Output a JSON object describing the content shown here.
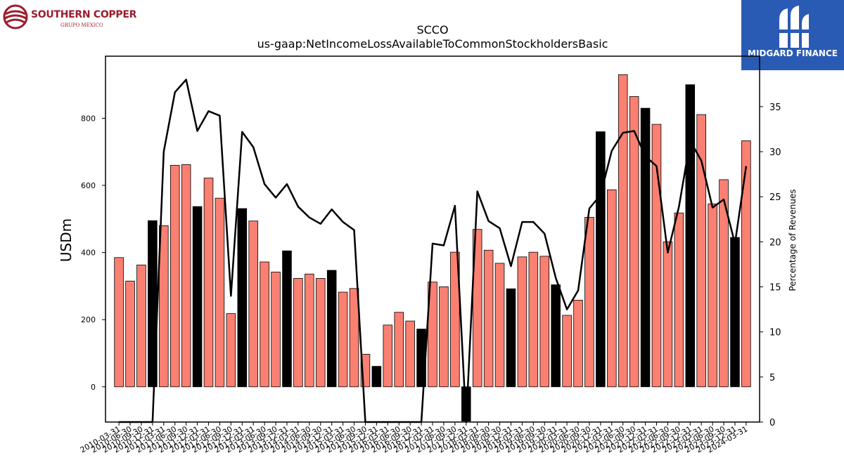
{
  "header": {
    "left_logo": {
      "name": "SOUTHERN COPPER",
      "subname": "GRUPO MEXICO",
      "color": "#9b1c2e"
    },
    "right_logo": {
      "name": "MIDGARD FINANCE",
      "background": "#2a5bb4"
    }
  },
  "chart_data": {
    "type": "bar",
    "title": "SCCO",
    "subtitle": "us-gaap:NetIncomeLossAvailableToCommonStockholdersBasic",
    "ylabel": "USDm",
    "y2label": "Percentage of Revenues",
    "ylim": [
      -105,
      985
    ],
    "y2lim": [
      0,
      40.6
    ],
    "yticks": [
      0,
      200,
      400,
      600,
      800
    ],
    "y2ticks": [
      0,
      5,
      10,
      15,
      20,
      25,
      30,
      35
    ],
    "categories": [
      "2010-03-31",
      "2010-06-30",
      "2010-09-30",
      "2010-12-31",
      "2011-03-31",
      "2011-06-30",
      "2011-09-30",
      "2011-12-31",
      "2012-03-31",
      "2012-06-30",
      "2012-09-30",
      "2012-12-31",
      "2013-03-31",
      "2013-06-30",
      "2013-09-30",
      "2013-12-31",
      "2014-03-31",
      "2014-06-30",
      "2014-09-30",
      "2014-12-31",
      "2015-03-31",
      "2015-06-30",
      "2015-09-30",
      "2015-12-31",
      "2016-03-31",
      "2016-06-30",
      "2016-09-30",
      "2016-12-31",
      "2017-03-31",
      "2017-06-30",
      "2017-09-30",
      "2017-12-31",
      "2018-03-31",
      "2018-06-30",
      "2018-09-30",
      "2018-12-31",
      "2019-03-31",
      "2019-06-30",
      "2019-09-30",
      "2019-12-31",
      "2020-03-31",
      "2020-06-30",
      "2020-09-30",
      "2020-12-31",
      "2021-03-31",
      "2021-06-30",
      "2021-09-30",
      "2021-12-31",
      "2022-03-31",
      "2022-06-30",
      "2022-09-30",
      "2022-12-31",
      "2023-03-31",
      "2023-06-30",
      "2023-09-30",
      "2023-12-31",
      "2024-03-31"
    ],
    "series": [
      {
        "values": [
          385,
          315,
          363,
          495,
          480,
          660,
          662,
          537,
          622,
          562,
          218,
          531,
          494,
          372,
          342,
          405,
          323,
          336,
          323,
          347,
          282,
          293,
          97,
          61,
          184,
          222,
          196,
          172,
          312,
          298,
          401,
          -102,
          469,
          407,
          368,
          292,
          387,
          401,
          389,
          304,
          213,
          258,
          505,
          760,
          587,
          930,
          865,
          830,
          782,
          432,
          518,
          900,
          811,
          545,
          617,
          445,
          733
        ],
        "highlight": [
          false,
          false,
          false,
          true,
          false,
          false,
          false,
          true,
          false,
          false,
          false,
          true,
          false,
          false,
          false,
          true,
          false,
          false,
          false,
          true,
          false,
          false,
          false,
          true,
          false,
          false,
          false,
          true,
          false,
          false,
          false,
          true,
          false,
          false,
          false,
          true,
          false,
          false,
          false,
          true,
          false,
          false,
          false,
          true,
          false,
          false,
          false,
          true,
          false,
          false,
          false,
          true,
          false,
          false,
          false,
          true,
          false
        ]
      },
      {
        "values": [
          0,
          0,
          0,
          0,
          30,
          36.6,
          38,
          32.3,
          34.5,
          34,
          14,
          32.2,
          30.5,
          26.4,
          24.9,
          26.4,
          23.9,
          22.7,
          22,
          23.6,
          22.2,
          21.3,
          0,
          0,
          0,
          0,
          0,
          0,
          19.8,
          19.6,
          24,
          0,
          25.6,
          22.3,
          21.5,
          17.3,
          22.2,
          22.2,
          20.9,
          16,
          12.5,
          14.6,
          23.7,
          25.2,
          30.1,
          32.1,
          32.3,
          29.5,
          28.4,
          18.8,
          23.9,
          31.2,
          29,
          23.8,
          24.7,
          19.8,
          28.4
        ]
      }
    ],
    "colors": {
      "bar": "#fa8072",
      "bar_highlight": "#000000",
      "line": "#000000"
    },
    "grid": false
  }
}
